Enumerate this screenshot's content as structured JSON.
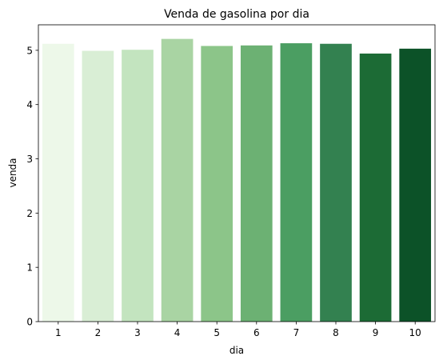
{
  "chart_data": {
    "type": "bar",
    "title": "Venda de gasolina por dia",
    "xlabel": "dia",
    "ylabel": "venda",
    "categories": [
      "1",
      "2",
      "3",
      "4",
      "5",
      "6",
      "7",
      "8",
      "9",
      "10"
    ],
    "values": [
      5.12,
      4.99,
      5.01,
      5.21,
      5.08,
      5.09,
      5.13,
      5.12,
      4.94,
      5.03
    ],
    "ylim": [
      0,
      5.47
    ],
    "yticks": [
      "0",
      "1",
      "2",
      "3",
      "4",
      "5"
    ],
    "grid": false,
    "colors": [
      "#edf8e9",
      "#d9eed5",
      "#c3e4bf",
      "#a9d4a3",
      "#8cc589",
      "#6cb173",
      "#4b9e62",
      "#338150",
      "#1c6b35",
      "#0c5228"
    ]
  }
}
